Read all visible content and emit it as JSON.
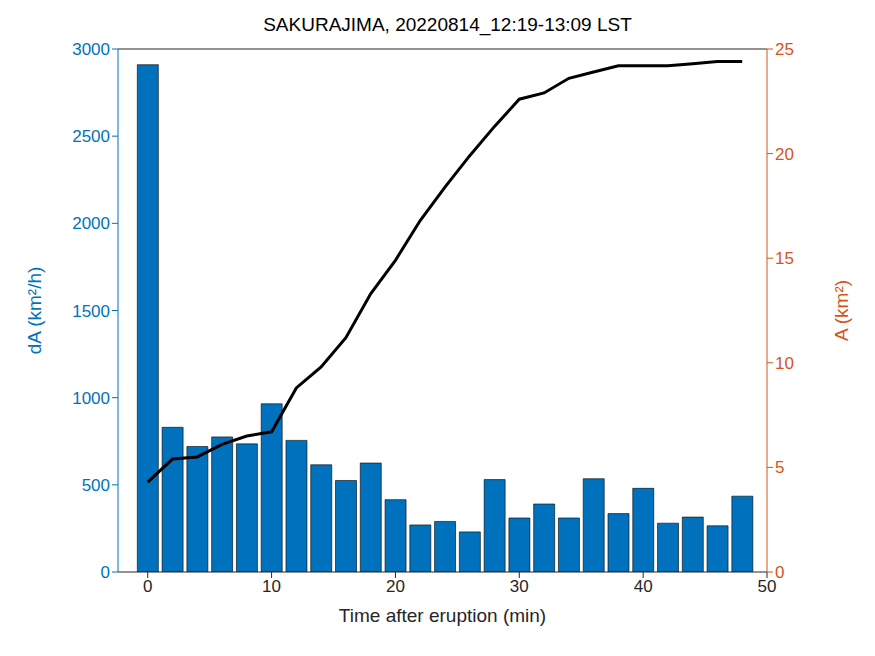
{
  "chart_data": {
    "type": "bar",
    "title": "SAKURAJIMA, 20220814_12:19-13:09 LST",
    "x_label": "Time after eruption (min)",
    "y_label": "dA (km²/h)",
    "y2_label": "A (km²)",
    "x": [
      0,
      2,
      4,
      6,
      8,
      10,
      12,
      14,
      16,
      18,
      20,
      22,
      24,
      26,
      28,
      30,
      32,
      34,
      36,
      38,
      40,
      42,
      44,
      46,
      48
    ],
    "series": [
      {
        "type": "bar",
        "color": "#0072bd",
        "values": [
          2910,
          830,
          720,
          775,
          735,
          965,
          755,
          615,
          525,
          625,
          415,
          270,
          290,
          230,
          530,
          310,
          390,
          310,
          535,
          335,
          480,
          280,
          315,
          265,
          435
        ]
      },
      {
        "type": "line",
        "color": "#000000",
        "axis": "y2",
        "values": [
          4.3,
          5.4,
          5.5,
          6.1,
          6.5,
          6.7,
          8.8,
          9.8,
          11.2,
          13.3,
          14.9,
          16.8,
          18.4,
          19.9,
          21.3,
          22.6,
          22.9,
          23.6,
          23.9,
          24.2,
          24.2,
          24.2,
          24.3,
          24.4,
          24.4
        ]
      }
    ],
    "xlim": [
      -2.4,
      50
    ],
    "xticks": [
      0,
      10,
      20,
      30,
      40,
      50
    ],
    "ylim": [
      0,
      3000
    ],
    "yticks": [
      0,
      500,
      1000,
      1500,
      2000,
      2500,
      3000
    ],
    "y2lim": [
      0,
      25
    ],
    "y2ticks": [
      0,
      5,
      10,
      15,
      20,
      25
    ],
    "grid": false
  }
}
